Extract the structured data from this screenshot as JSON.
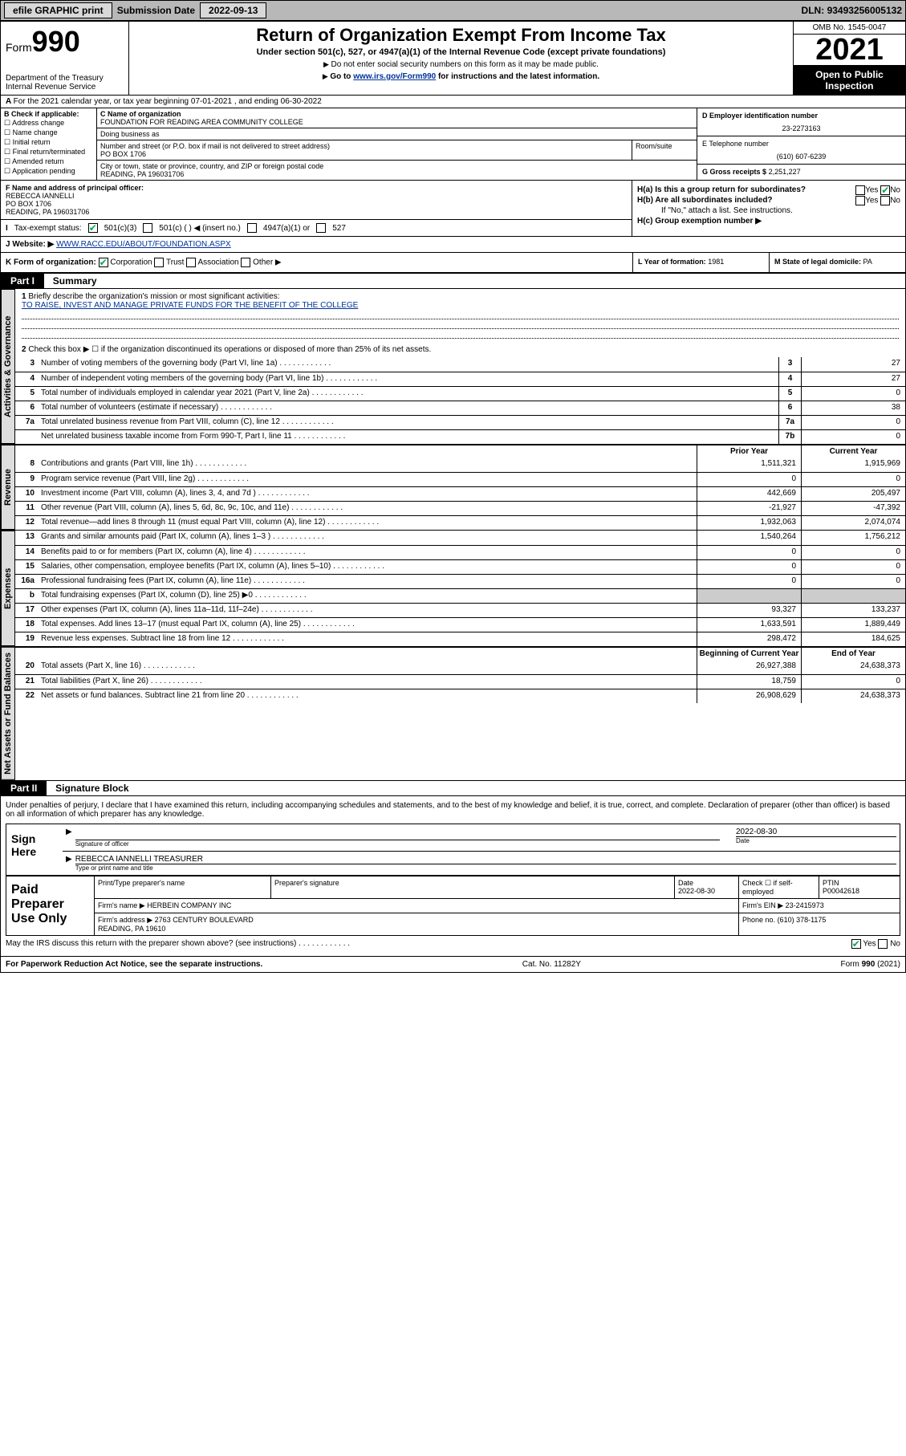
{
  "topbar": {
    "efile": "efile GRAPHIC print",
    "sub_label": "Submission Date",
    "sub_date": "2022-09-13",
    "dln_label": "DLN:",
    "dln": "93493256005132"
  },
  "header": {
    "form_prefix": "Form",
    "form_num": "990",
    "dept": "Department of the Treasury\nInternal Revenue Service",
    "title": "Return of Organization Exempt From Income Tax",
    "subtitle": "Under section 501(c), 527, or 4947(a)(1) of the Internal Revenue Code (except private foundations)",
    "note1": "Do not enter social security numbers on this form as it may be made public.",
    "note2_pre": "Go to ",
    "note2_link": "www.irs.gov/Form990",
    "note2_post": " for instructions and the latest information.",
    "omb": "OMB No. 1545-0047",
    "year": "2021",
    "open": "Open to Public Inspection"
  },
  "lineA": "For the 2021 calendar year, or tax year beginning 07-01-2021   , and ending 06-30-2022",
  "boxB": {
    "label": "B Check if applicable:",
    "items": [
      "Address change",
      "Name change",
      "Initial return",
      "Final return/terminated",
      "Amended return",
      "Application pending"
    ]
  },
  "boxC": {
    "label": "C Name of organization",
    "name": "FOUNDATION FOR READING AREA COMMUNITY COLLEGE",
    "dba_label": "Doing business as",
    "dba": "",
    "addr_label": "Number and street (or P.O. box if mail is not delivered to street address)",
    "room_label": "Room/suite",
    "addr": "PO BOX 1706",
    "city_label": "City or town, state or province, country, and ZIP or foreign postal code",
    "city": "READING, PA  196031706"
  },
  "boxD": {
    "label": "D Employer identification number",
    "val": "23-2273163"
  },
  "boxE": {
    "label": "E Telephone number",
    "val": "(610) 607-6239"
  },
  "boxG": {
    "label": "G Gross receipts $",
    "val": "2,251,227"
  },
  "boxF": {
    "label": "F Name and address of principal officer:",
    "name": "REBECCA IANNELLI",
    "addr": "PO BOX 1706\nREADING, PA  196031706"
  },
  "boxH": {
    "a": "H(a)  Is this a group return for subordinates?",
    "b": "H(b)  Are all subordinates included?",
    "note": "If \"No,\" attach a list. See instructions.",
    "c": "H(c)  Group exemption number ▶",
    "yes": "Yes",
    "no": "No"
  },
  "boxI": {
    "label": "Tax-exempt status:",
    "opts": [
      "501(c)(3)",
      "501(c) (  ) ◀ (insert no.)",
      "4947(a)(1) or",
      "527"
    ]
  },
  "boxJ": {
    "label": "Website: ▶",
    "val": "WWW.RACC.EDU/ABOUT/FOUNDATION.ASPX"
  },
  "boxK": {
    "label": "K Form of organization:",
    "opts": [
      "Corporation",
      "Trust",
      "Association",
      "Other ▶"
    ]
  },
  "boxL": {
    "label": "L Year of formation:",
    "val": "1981"
  },
  "boxM": {
    "label": "M State of legal domicile:",
    "val": "PA"
  },
  "part1": {
    "hdr": "Part I",
    "title": "Summary"
  },
  "summary": {
    "l1": "Briefly describe the organization's mission or most significant activities:",
    "l1_text": "TO RAISE, INVEST AND MANAGE PRIVATE FUNDS FOR THE BENEFIT OF THE COLLEGE",
    "l2": "Check this box ▶ ☐  if the organization discontinued its operations or disposed of more than 25% of its net assets.",
    "rows_gov": [
      {
        "n": "3",
        "t": "Number of voting members of the governing body (Part VI, line 1a)",
        "b": "3",
        "v": "27"
      },
      {
        "n": "4",
        "t": "Number of independent voting members of the governing body (Part VI, line 1b)",
        "b": "4",
        "v": "27"
      },
      {
        "n": "5",
        "t": "Total number of individuals employed in calendar year 2021 (Part V, line 2a)",
        "b": "5",
        "v": "0"
      },
      {
        "n": "6",
        "t": "Total number of volunteers (estimate if necessary)",
        "b": "6",
        "v": "38"
      },
      {
        "n": "7a",
        "t": "Total unrelated business revenue from Part VIII, column (C), line 12",
        "b": "7a",
        "v": "0"
      },
      {
        "n": "",
        "t": "Net unrelated business taxable income from Form 990-T, Part I, line 11",
        "b": "7b",
        "v": "0"
      }
    ],
    "ch_prior": "Prior Year",
    "ch_current": "Current Year",
    "rows_rev": [
      {
        "n": "8",
        "t": "Contributions and grants (Part VIII, line 1h)",
        "p": "1,511,321",
        "c": "1,915,969"
      },
      {
        "n": "9",
        "t": "Program service revenue (Part VIII, line 2g)",
        "p": "0",
        "c": "0"
      },
      {
        "n": "10",
        "t": "Investment income (Part VIII, column (A), lines 3, 4, and 7d )",
        "p": "442,669",
        "c": "205,497"
      },
      {
        "n": "11",
        "t": "Other revenue (Part VIII, column (A), lines 5, 6d, 8c, 9c, 10c, and 11e)",
        "p": "-21,927",
        "c": "-47,392"
      },
      {
        "n": "12",
        "t": "Total revenue—add lines 8 through 11 (must equal Part VIII, column (A), line 12)",
        "p": "1,932,063",
        "c": "2,074,074"
      }
    ],
    "rows_exp": [
      {
        "n": "13",
        "t": "Grants and similar amounts paid (Part IX, column (A), lines 1–3 )",
        "p": "1,540,264",
        "c": "1,756,212"
      },
      {
        "n": "14",
        "t": "Benefits paid to or for members (Part IX, column (A), line 4)",
        "p": "0",
        "c": "0"
      },
      {
        "n": "15",
        "t": "Salaries, other compensation, employee benefits (Part IX, column (A), lines 5–10)",
        "p": "0",
        "c": "0"
      },
      {
        "n": "16a",
        "t": "Professional fundraising fees (Part IX, column (A), line 11e)",
        "p": "0",
        "c": "0"
      },
      {
        "n": "b",
        "t": "Total fundraising expenses (Part IX, column (D), line 25) ▶0",
        "p": "",
        "c": "",
        "shade": true
      },
      {
        "n": "17",
        "t": "Other expenses (Part IX, column (A), lines 11a–11d, 11f–24e)",
        "p": "93,327",
        "c": "133,237"
      },
      {
        "n": "18",
        "t": "Total expenses. Add lines 13–17 (must equal Part IX, column (A), line 25)",
        "p": "1,633,591",
        "c": "1,889,449"
      },
      {
        "n": "19",
        "t": "Revenue less expenses. Subtract line 18 from line 12",
        "p": "298,472",
        "c": "184,625"
      }
    ],
    "ch_begin": "Beginning of Current Year",
    "ch_end": "End of Year",
    "rows_net": [
      {
        "n": "20",
        "t": "Total assets (Part X, line 16)",
        "p": "26,927,388",
        "c": "24,638,373"
      },
      {
        "n": "21",
        "t": "Total liabilities (Part X, line 26)",
        "p": "18,759",
        "c": "0"
      },
      {
        "n": "22",
        "t": "Net assets or fund balances. Subtract line 21 from line 20",
        "p": "26,908,629",
        "c": "24,638,373"
      }
    ]
  },
  "side_labels": {
    "gov": "Activities & Governance",
    "rev": "Revenue",
    "exp": "Expenses",
    "net": "Net Assets or Fund Balances"
  },
  "part2": {
    "hdr": "Part II",
    "title": "Signature Block"
  },
  "sig": {
    "decl": "Under penalties of perjury, I declare that I have examined this return, including accompanying schedules and statements, and to the best of my knowledge and belief, it is true, correct, and complete. Declaration of preparer (other than officer) is based on all information of which preparer has any knowledge.",
    "sign_here": "Sign Here",
    "sig_officer": "Signature of officer",
    "date": "2022-08-30",
    "name_title": "REBECCA IANNELLI TREASURER",
    "type_name": "Type or print name and title"
  },
  "paid": {
    "label": "Paid Preparer Use Only",
    "h1": "Print/Type preparer's name",
    "h2": "Preparer's signature",
    "h3": "Date",
    "h3v": "2022-08-30",
    "h4": "Check ☐ if self-employed",
    "h5": "PTIN",
    "h5v": "P00042618",
    "firm_name_l": "Firm's name    ▶",
    "firm_name": "HERBEIN COMPANY INC",
    "firm_ein_l": "Firm's EIN ▶",
    "firm_ein": "23-2415973",
    "firm_addr_l": "Firm's address ▶",
    "firm_addr": "2763 CENTURY BOULEVARD\nREADING, PA  19610",
    "phone_l": "Phone no.",
    "phone": "(610) 378-1175"
  },
  "discuss": {
    "text": "May the IRS discuss this return with the preparer shown above? (see instructions)",
    "yes": "Yes",
    "no": "No"
  },
  "footer": {
    "left": "For Paperwork Reduction Act Notice, see the separate instructions.",
    "mid": "Cat. No. 11282Y",
    "right": "Form 990 (2021)"
  },
  "colors": {
    "link": "#003399",
    "check": "#00aa55",
    "topbar": "#b8b8b8",
    "shade": "#cccccc"
  }
}
